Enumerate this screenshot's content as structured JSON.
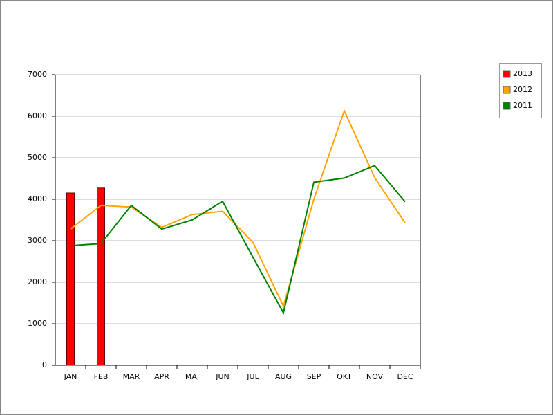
{
  "chart_data": {
    "type": "combo",
    "categories": [
      "JAN",
      "FEB",
      "MAR",
      "APR",
      "MAJ",
      "JUN",
      "JUL",
      "AUG",
      "SEP",
      "OKT",
      "NOV",
      "DEC"
    ],
    "series": [
      {
        "name": "2013",
        "type": "bar",
        "color": "#ff0000",
        "values": [
          4150,
          4270,
          null,
          null,
          null,
          null,
          null,
          null,
          null,
          null,
          null,
          null
        ]
      },
      {
        "name": "2012",
        "type": "line",
        "color": "#ffa500",
        "values": [
          3280,
          3850,
          3810,
          3320,
          3630,
          3710,
          2960,
          1420,
          4000,
          6130,
          4520,
          3430
        ]
      },
      {
        "name": "2011",
        "type": "line",
        "color": "#008000",
        "values": [
          2880,
          2930,
          3850,
          3280,
          3500,
          3950,
          2600,
          1260,
          4410,
          4510,
          4810,
          3940
        ]
      }
    ],
    "ylim": [
      0,
      7000
    ],
    "yticks": [
      0,
      1000,
      2000,
      3000,
      4000,
      5000,
      6000,
      7000
    ],
    "grid": true,
    "legend": "right"
  }
}
